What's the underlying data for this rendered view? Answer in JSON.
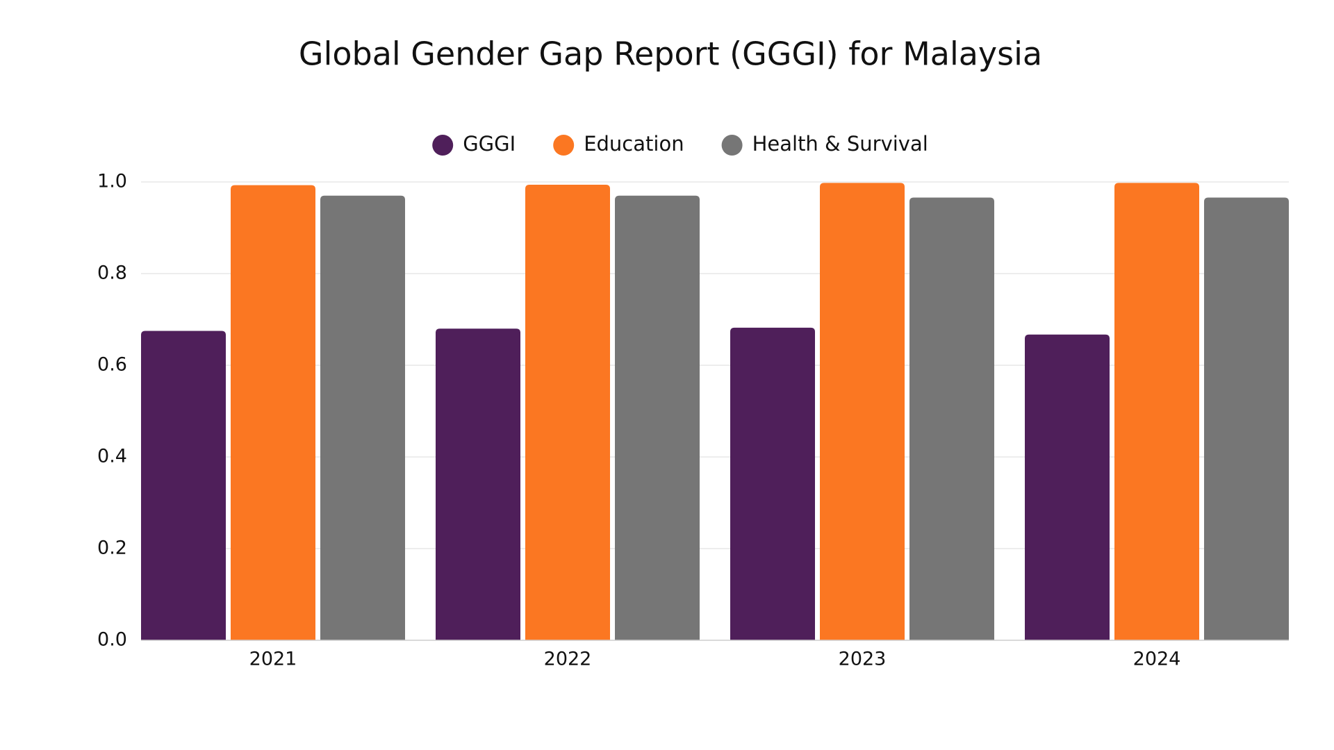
{
  "chart_data": {
    "type": "bar",
    "title": "Global Gender Gap Report (GGGI) for Malaysia",
    "categories": [
      "2021",
      "2022",
      "2023",
      "2024"
    ],
    "series": [
      {
        "name": "GGGI",
        "color": "#4f1f5a",
        "values": [
          0.675,
          0.68,
          0.682,
          0.667
        ]
      },
      {
        "name": "Education",
        "color": "#fb7722",
        "values": [
          0.993,
          0.994,
          0.998,
          0.998
        ]
      },
      {
        "name": "Health & Survival",
        "color": "#767676",
        "values": [
          0.97,
          0.97,
          0.966,
          0.966
        ]
      }
    ],
    "ylim": [
      0,
      1
    ],
    "yticks": [
      {
        "value": 0,
        "label": "0.0"
      },
      0.2,
      0.4,
      0.6,
      0.8,
      {
        "value": 1,
        "label": "1.0"
      }
    ],
    "grid": true,
    "legend": "top"
  }
}
